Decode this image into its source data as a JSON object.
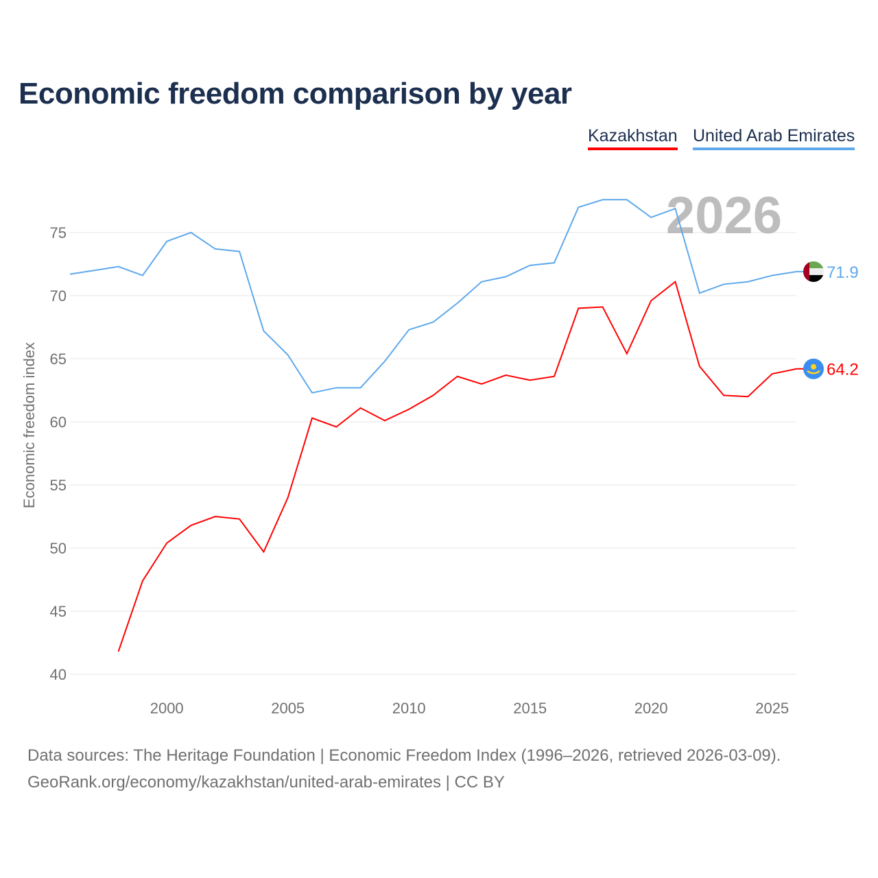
{
  "chart_data": {
    "type": "line",
    "title": "Economic freedom comparison by year",
    "xlabel": "",
    "ylabel": "Economic freedom index",
    "xlim": [
      1996,
      2026
    ],
    "ylim": [
      38,
      79
    ],
    "x_ticks": [
      2000,
      2005,
      2010,
      2015,
      2020,
      2025
    ],
    "y_ticks": [
      40,
      45,
      50,
      55,
      60,
      65,
      70,
      75
    ],
    "grid": true,
    "legend_placement": "top-right",
    "year_watermark": "2026",
    "series": [
      {
        "name": "Kazakhstan",
        "color": "#ff0000",
        "end_label": "64.2",
        "flag": "kazakhstan-flag",
        "x": [
          1998,
          1999,
          2000,
          2001,
          2002,
          2003,
          2004,
          2005,
          2006,
          2007,
          2008,
          2009,
          2010,
          2011,
          2012,
          2013,
          2014,
          2015,
          2016,
          2017,
          2018,
          2019,
          2020,
          2021,
          2022,
          2023,
          2024,
          2025,
          2026
        ],
        "values": [
          41.8,
          47.4,
          50.4,
          51.8,
          52.5,
          52.3,
          49.7,
          54.0,
          60.3,
          59.6,
          61.1,
          60.1,
          61.0,
          62.1,
          63.6,
          63.0,
          63.7,
          63.3,
          63.6,
          69.0,
          69.1,
          65.4,
          69.6,
          71.1,
          64.4,
          62.1,
          62.0,
          63.8,
          64.2
        ]
      },
      {
        "name": "United Arab Emirates",
        "color": "#5ea8ec",
        "end_label": "71.9",
        "flag": "uae-flag",
        "x": [
          1996,
          1997,
          1998,
          1999,
          2000,
          2001,
          2002,
          2003,
          2004,
          2005,
          2006,
          2007,
          2008,
          2009,
          2010,
          2011,
          2012,
          2013,
          2014,
          2015,
          2016,
          2017,
          2018,
          2019,
          2020,
          2021,
          2022,
          2023,
          2024,
          2025,
          2026
        ],
        "values": [
          71.7,
          72.0,
          72.3,
          71.6,
          74.3,
          75.0,
          73.7,
          73.5,
          67.2,
          65.3,
          62.3,
          62.7,
          62.7,
          64.8,
          67.3,
          67.9,
          69.4,
          71.1,
          71.5,
          72.4,
          72.6,
          77.0,
          77.6,
          77.6,
          76.2,
          76.9,
          70.2,
          70.9,
          71.1,
          71.6,
          71.9
        ]
      }
    ]
  },
  "footer": {
    "sources": "Data sources: The Heritage Foundation | Economic Freedom Index (1996–2026, retrieved 2026-03-09).",
    "attribution": "GeoRank.org/economy/kazakhstan/united-arab-emirates | CC BY"
  }
}
